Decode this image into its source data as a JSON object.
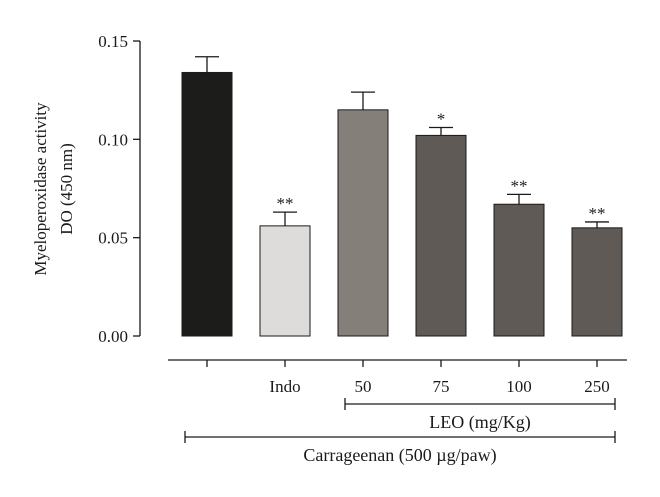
{
  "chart_data": {
    "type": "bar",
    "ylabel_line1": "Myeloperoxidase activity",
    "ylabel_line2": "DO (450 nm)",
    "ylim": [
      0,
      0.15
    ],
    "yticks": [
      "0.00",
      "0.05",
      "0.10",
      "0.15"
    ],
    "ytick_values": [
      0,
      0.05,
      0.1,
      0.15
    ],
    "categories": [
      "",
      "Indo",
      "50",
      "75",
      "100",
      "250"
    ],
    "values": [
      0.134,
      0.056,
      0.115,
      0.102,
      0.067,
      0.055
    ],
    "errors": [
      0.008,
      0.007,
      0.009,
      0.004,
      0.005,
      0.003
    ],
    "significance": [
      "",
      "**",
      "",
      "*",
      "**",
      "**"
    ],
    "bar_colors": [
      "#1c1c1a",
      "#dddcda",
      "#857f7a",
      "#5f5a56",
      "#5f5a56",
      "#5f5a56"
    ],
    "brackets": [
      {
        "label": "LEO (mg/Kg)",
        "from": 2,
        "to": 5
      },
      {
        "label": "Carrageenan (500 µg/paw)",
        "from": 0,
        "to": 5
      }
    ]
  }
}
